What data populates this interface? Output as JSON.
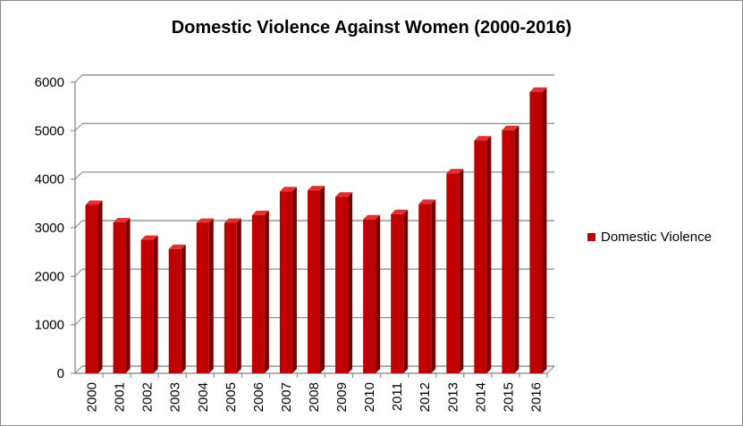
{
  "chart_data": {
    "type": "bar",
    "title": "Domestic Violence Against Women (2000-2016)",
    "xlabel": "",
    "ylabel": "",
    "categories": [
      "2000",
      "2001",
      "2002",
      "2003",
      "2004",
      "2005",
      "2006",
      "2007",
      "2008",
      "2009",
      "2010",
      "2011",
      "2012",
      "2013",
      "2014",
      "2015",
      "2016"
    ],
    "series": [
      {
        "name": "Domestic Violence",
        "values": [
          3470,
          3110,
          2750,
          2560,
          3100,
          3100,
          3260,
          3750,
          3770,
          3640,
          3170,
          3280,
          3490,
          4120,
          4800,
          5010,
          5800
        ]
      }
    ],
    "ylim": [
      0,
      6000
    ],
    "yticks": [
      "0",
      "1000",
      "2000",
      "3000",
      "4000",
      "5000",
      "6000"
    ],
    "grid": true,
    "legend_position": "right",
    "colors": {
      "bar_front": "#c00000",
      "bar_side": "#7a0000",
      "bar_top": "#e03030",
      "gridline": "#7f7f7f",
      "axis": "#7f7f7f"
    }
  }
}
